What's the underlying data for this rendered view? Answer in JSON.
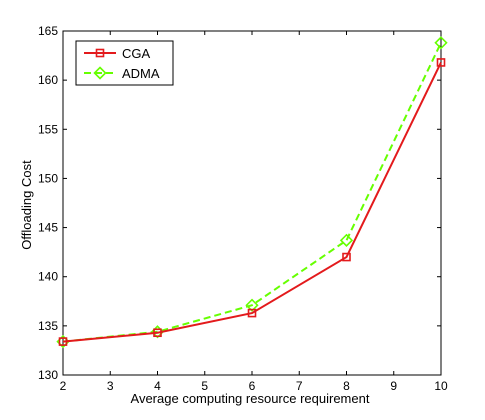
{
  "chart_data": {
    "type": "line",
    "title": "",
    "xlabel": "Average computing resource requirement",
    "ylabel": "Offloading Cost",
    "xlim": [
      2,
      10
    ],
    "ylim": [
      130,
      165
    ],
    "xticks": [
      2,
      3,
      4,
      5,
      6,
      7,
      8,
      9,
      10
    ],
    "yticks": [
      130,
      135,
      140,
      145,
      150,
      155,
      160,
      165
    ],
    "grid": false,
    "legend_position": "top-left",
    "x": [
      2,
      4,
      6,
      8,
      10
    ],
    "series": [
      {
        "name": "CGA",
        "values": [
          133.4,
          134.3,
          136.3,
          142.0,
          161.8
        ],
        "color": "#e31a1c",
        "marker": "square",
        "line_style": "solid"
      },
      {
        "name": "ADMA",
        "values": [
          133.4,
          134.4,
          137.1,
          143.7,
          163.8
        ],
        "color": "#66ff00",
        "marker": "diamond",
        "line_style": "dashed"
      }
    ]
  }
}
